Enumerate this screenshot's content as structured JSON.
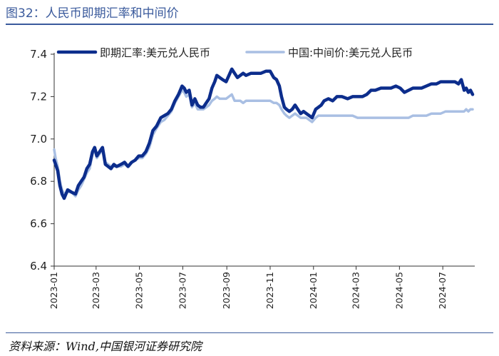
{
  "header": {
    "title": "图32：人民币即期汇率和中间价"
  },
  "footer": {
    "source": "资料来源：Wind,中国银河证券研究院"
  },
  "chart_data": {
    "type": "line",
    "ylim": [
      6.4,
      7.4
    ],
    "yticks": [
      "6.4",
      "6.6",
      "6.8",
      "7.0",
      "7.2",
      "7.4"
    ],
    "xlim": [
      "2023-01-01",
      "2024-08-15"
    ],
    "xticks": [
      "2023-01",
      "2023-03",
      "2023-05",
      "2023-07",
      "2023-09",
      "2023-11",
      "2024-01",
      "2024-03",
      "2024-05",
      "2024-07"
    ],
    "grid": false,
    "legend_position": "top",
    "series": [
      {
        "name": "即期汇率:美元兑人民币",
        "color": "#0c2d8c",
        "points": [
          [
            "2023-01-01",
            6.9
          ],
          [
            "2023-01-03",
            6.88
          ],
          [
            "2023-01-06",
            6.85
          ],
          [
            "2023-01-09",
            6.78
          ],
          [
            "2023-01-12",
            6.74
          ],
          [
            "2023-01-15",
            6.72
          ],
          [
            "2023-01-20",
            6.76
          ],
          [
            "2023-01-25",
            6.75
          ],
          [
            "2023-01-31",
            6.74
          ],
          [
            "2023-02-04",
            6.78
          ],
          [
            "2023-02-08",
            6.8
          ],
          [
            "2023-02-12",
            6.82
          ],
          [
            "2023-02-16",
            6.86
          ],
          [
            "2023-02-20",
            6.88
          ],
          [
            "2023-02-24",
            6.94
          ],
          [
            "2023-02-27",
            6.96
          ],
          [
            "2023-03-02",
            6.92
          ],
          [
            "2023-03-06",
            6.94
          ],
          [
            "2023-03-10",
            6.96
          ],
          [
            "2023-03-14",
            6.88
          ],
          [
            "2023-03-18",
            6.87
          ],
          [
            "2023-03-22",
            6.86
          ],
          [
            "2023-03-26",
            6.88
          ],
          [
            "2023-03-30",
            6.87
          ],
          [
            "2023-04-05",
            6.88
          ],
          [
            "2023-04-10",
            6.89
          ],
          [
            "2023-04-15",
            6.87
          ],
          [
            "2023-04-20",
            6.89
          ],
          [
            "2023-04-25",
            6.9
          ],
          [
            "2023-04-30",
            6.92
          ],
          [
            "2023-05-05",
            6.92
          ],
          [
            "2023-05-10",
            6.94
          ],
          [
            "2023-05-15",
            6.98
          ],
          [
            "2023-05-20",
            7.04
          ],
          [
            "2023-05-25",
            7.06
          ],
          [
            "2023-05-31",
            7.1
          ],
          [
            "2023-06-05",
            7.11
          ],
          [
            "2023-06-10",
            7.12
          ],
          [
            "2023-06-15",
            7.14
          ],
          [
            "2023-06-20",
            7.18
          ],
          [
            "2023-06-25",
            7.21
          ],
          [
            "2023-06-30",
            7.25
          ],
          [
            "2023-07-03",
            7.24
          ],
          [
            "2023-07-06",
            7.22
          ],
          [
            "2023-07-10",
            7.23
          ],
          [
            "2023-07-14",
            7.16
          ],
          [
            "2023-07-18",
            7.19
          ],
          [
            "2023-07-22",
            7.16
          ],
          [
            "2023-07-26",
            7.15
          ],
          [
            "2023-07-30",
            7.15
          ],
          [
            "2023-08-03",
            7.17
          ],
          [
            "2023-08-07",
            7.19
          ],
          [
            "2023-08-11",
            7.24
          ],
          [
            "2023-08-15",
            7.27
          ],
          [
            "2023-08-18",
            7.3
          ],
          [
            "2023-08-22",
            7.29
          ],
          [
            "2023-08-26",
            7.28
          ],
          [
            "2023-08-31",
            7.27
          ],
          [
            "2023-09-04",
            7.3
          ],
          [
            "2023-09-08",
            7.33
          ],
          [
            "2023-09-12",
            7.31
          ],
          [
            "2023-09-16",
            7.29
          ],
          [
            "2023-09-20",
            7.3
          ],
          [
            "2023-09-24",
            7.31
          ],
          [
            "2023-09-28",
            7.3
          ],
          [
            "2023-10-05",
            7.31
          ],
          [
            "2023-10-12",
            7.31
          ],
          [
            "2023-10-19",
            7.31
          ],
          [
            "2023-10-26",
            7.32
          ],
          [
            "2023-11-01",
            7.32
          ],
          [
            "2023-11-06",
            7.29
          ],
          [
            "2023-11-10",
            7.28
          ],
          [
            "2023-11-14",
            7.25
          ],
          [
            "2023-11-17",
            7.2
          ],
          [
            "2023-11-21",
            7.15
          ],
          [
            "2023-11-24",
            7.14
          ],
          [
            "2023-11-28",
            7.13
          ],
          [
            "2023-12-02",
            7.14
          ],
          [
            "2023-12-06",
            7.16
          ],
          [
            "2023-12-10",
            7.14
          ],
          [
            "2023-12-14",
            7.12
          ],
          [
            "2023-12-18",
            7.13
          ],
          [
            "2023-12-22",
            7.12
          ],
          [
            "2023-12-26",
            7.11
          ],
          [
            "2023-12-30",
            7.1
          ],
          [
            "2024-01-04",
            7.14
          ],
          [
            "2024-01-08",
            7.15
          ],
          [
            "2024-01-12",
            7.16
          ],
          [
            "2024-01-16",
            7.18
          ],
          [
            "2024-01-22",
            7.19
          ],
          [
            "2024-01-28",
            7.18
          ],
          [
            "2024-02-03",
            7.2
          ],
          [
            "2024-02-10",
            7.2
          ],
          [
            "2024-02-18",
            7.19
          ],
          [
            "2024-02-25",
            7.2
          ],
          [
            "2024-03-03",
            7.2
          ],
          [
            "2024-03-10",
            7.2
          ],
          [
            "2024-03-16",
            7.21
          ],
          [
            "2024-03-22",
            7.23
          ],
          [
            "2024-03-28",
            7.23
          ],
          [
            "2024-04-05",
            7.24
          ],
          [
            "2024-04-12",
            7.24
          ],
          [
            "2024-04-19",
            7.24
          ],
          [
            "2024-04-26",
            7.25
          ],
          [
            "2024-05-02",
            7.24
          ],
          [
            "2024-05-08",
            7.22
          ],
          [
            "2024-05-14",
            7.23
          ],
          [
            "2024-05-20",
            7.24
          ],
          [
            "2024-05-26",
            7.24
          ],
          [
            "2024-06-01",
            7.24
          ],
          [
            "2024-06-08",
            7.25
          ],
          [
            "2024-06-15",
            7.26
          ],
          [
            "2024-06-22",
            7.26
          ],
          [
            "2024-06-28",
            7.27
          ],
          [
            "2024-07-05",
            7.27
          ],
          [
            "2024-07-12",
            7.27
          ],
          [
            "2024-07-18",
            7.27
          ],
          [
            "2024-07-23",
            7.26
          ],
          [
            "2024-07-27",
            7.28
          ],
          [
            "2024-07-31",
            7.23
          ],
          [
            "2024-08-03",
            7.24
          ],
          [
            "2024-08-06",
            7.22
          ],
          [
            "2024-08-09",
            7.23
          ],
          [
            "2024-08-12",
            7.21
          ]
        ]
      },
      {
        "name": "中国:中间价:美元兑人民币",
        "color": "#a9bfe3",
        "points": [
          [
            "2023-01-01",
            6.95
          ],
          [
            "2023-01-03",
            6.91
          ],
          [
            "2023-01-06",
            6.87
          ],
          [
            "2023-01-09",
            6.8
          ],
          [
            "2023-01-12",
            6.76
          ],
          [
            "2023-01-15",
            6.74
          ],
          [
            "2023-01-20",
            6.75
          ],
          [
            "2023-01-25",
            6.75
          ],
          [
            "2023-01-31",
            6.73
          ],
          [
            "2023-02-04",
            6.76
          ],
          [
            "2023-02-08",
            6.78
          ],
          [
            "2023-02-12",
            6.81
          ],
          [
            "2023-02-16",
            6.84
          ],
          [
            "2023-02-20",
            6.86
          ],
          [
            "2023-02-24",
            6.93
          ],
          [
            "2023-02-27",
            6.95
          ],
          [
            "2023-03-02",
            6.91
          ],
          [
            "2023-03-06",
            6.93
          ],
          [
            "2023-03-10",
            6.95
          ],
          [
            "2023-03-14",
            6.89
          ],
          [
            "2023-03-18",
            6.88
          ],
          [
            "2023-03-22",
            6.87
          ],
          [
            "2023-03-26",
            6.87
          ],
          [
            "2023-03-30",
            6.87
          ],
          [
            "2023-04-05",
            6.87
          ],
          [
            "2023-04-10",
            6.88
          ],
          [
            "2023-04-15",
            6.87
          ],
          [
            "2023-04-20",
            6.89
          ],
          [
            "2023-04-25",
            6.9
          ],
          [
            "2023-04-30",
            6.91
          ],
          [
            "2023-05-05",
            6.91
          ],
          [
            "2023-05-10",
            6.93
          ],
          [
            "2023-05-15",
            6.96
          ],
          [
            "2023-05-20",
            7.02
          ],
          [
            "2023-05-25",
            7.05
          ],
          [
            "2023-05-31",
            7.08
          ],
          [
            "2023-06-05",
            7.09
          ],
          [
            "2023-06-10",
            7.11
          ],
          [
            "2023-06-15",
            7.13
          ],
          [
            "2023-06-20",
            7.17
          ],
          [
            "2023-06-25",
            7.2
          ],
          [
            "2023-06-30",
            7.23
          ],
          [
            "2023-07-03",
            7.22
          ],
          [
            "2023-07-06",
            7.2
          ],
          [
            "2023-07-10",
            7.21
          ],
          [
            "2023-07-14",
            7.15
          ],
          [
            "2023-07-18",
            7.17
          ],
          [
            "2023-07-22",
            7.14
          ],
          [
            "2023-07-26",
            7.14
          ],
          [
            "2023-07-30",
            7.14
          ],
          [
            "2023-08-03",
            7.15
          ],
          [
            "2023-08-07",
            7.16
          ],
          [
            "2023-08-11",
            7.18
          ],
          [
            "2023-08-15",
            7.19
          ],
          [
            "2023-08-18",
            7.2
          ],
          [
            "2023-08-22",
            7.19
          ],
          [
            "2023-08-26",
            7.19
          ],
          [
            "2023-08-31",
            7.19
          ],
          [
            "2023-09-04",
            7.2
          ],
          [
            "2023-09-08",
            7.21
          ],
          [
            "2023-09-12",
            7.18
          ],
          [
            "2023-09-16",
            7.18
          ],
          [
            "2023-09-20",
            7.18
          ],
          [
            "2023-09-24",
            7.17
          ],
          [
            "2023-09-28",
            7.18
          ],
          [
            "2023-10-05",
            7.18
          ],
          [
            "2023-10-12",
            7.18
          ],
          [
            "2023-10-19",
            7.18
          ],
          [
            "2023-10-26",
            7.18
          ],
          [
            "2023-11-01",
            7.18
          ],
          [
            "2023-11-06",
            7.17
          ],
          [
            "2023-11-10",
            7.17
          ],
          [
            "2023-11-14",
            7.16
          ],
          [
            "2023-11-17",
            7.14
          ],
          [
            "2023-11-21",
            7.12
          ],
          [
            "2023-11-24",
            7.11
          ],
          [
            "2023-11-28",
            7.1
          ],
          [
            "2023-12-02",
            7.11
          ],
          [
            "2023-12-06",
            7.12
          ],
          [
            "2023-12-10",
            7.11
          ],
          [
            "2023-12-14",
            7.1
          ],
          [
            "2023-12-18",
            7.1
          ],
          [
            "2023-12-22",
            7.1
          ],
          [
            "2023-12-26",
            7.09
          ],
          [
            "2023-12-30",
            7.08
          ],
          [
            "2024-01-04",
            7.1
          ],
          [
            "2024-01-08",
            7.11
          ],
          [
            "2024-01-12",
            7.11
          ],
          [
            "2024-01-16",
            7.11
          ],
          [
            "2024-01-22",
            7.11
          ],
          [
            "2024-01-28",
            7.11
          ],
          [
            "2024-02-03",
            7.11
          ],
          [
            "2024-02-10",
            7.11
          ],
          [
            "2024-02-18",
            7.11
          ],
          [
            "2024-02-25",
            7.11
          ],
          [
            "2024-03-03",
            7.1
          ],
          [
            "2024-03-10",
            7.1
          ],
          [
            "2024-03-16",
            7.1
          ],
          [
            "2024-03-22",
            7.1
          ],
          [
            "2024-03-28",
            7.1
          ],
          [
            "2024-04-05",
            7.1
          ],
          [
            "2024-04-12",
            7.1
          ],
          [
            "2024-04-19",
            7.1
          ],
          [
            "2024-04-26",
            7.1
          ],
          [
            "2024-05-02",
            7.1
          ],
          [
            "2024-05-08",
            7.1
          ],
          [
            "2024-05-14",
            7.1
          ],
          [
            "2024-05-20",
            7.11
          ],
          [
            "2024-05-26",
            7.11
          ],
          [
            "2024-06-01",
            7.11
          ],
          [
            "2024-06-08",
            7.11
          ],
          [
            "2024-06-15",
            7.12
          ],
          [
            "2024-06-22",
            7.12
          ],
          [
            "2024-06-28",
            7.12
          ],
          [
            "2024-07-05",
            7.13
          ],
          [
            "2024-07-12",
            7.13
          ],
          [
            "2024-07-18",
            7.13
          ],
          [
            "2024-07-23",
            7.13
          ],
          [
            "2024-07-27",
            7.13
          ],
          [
            "2024-07-31",
            7.13
          ],
          [
            "2024-08-03",
            7.14
          ],
          [
            "2024-08-06",
            7.13
          ],
          [
            "2024-08-09",
            7.14
          ],
          [
            "2024-08-12",
            7.14
          ]
        ]
      }
    ]
  }
}
